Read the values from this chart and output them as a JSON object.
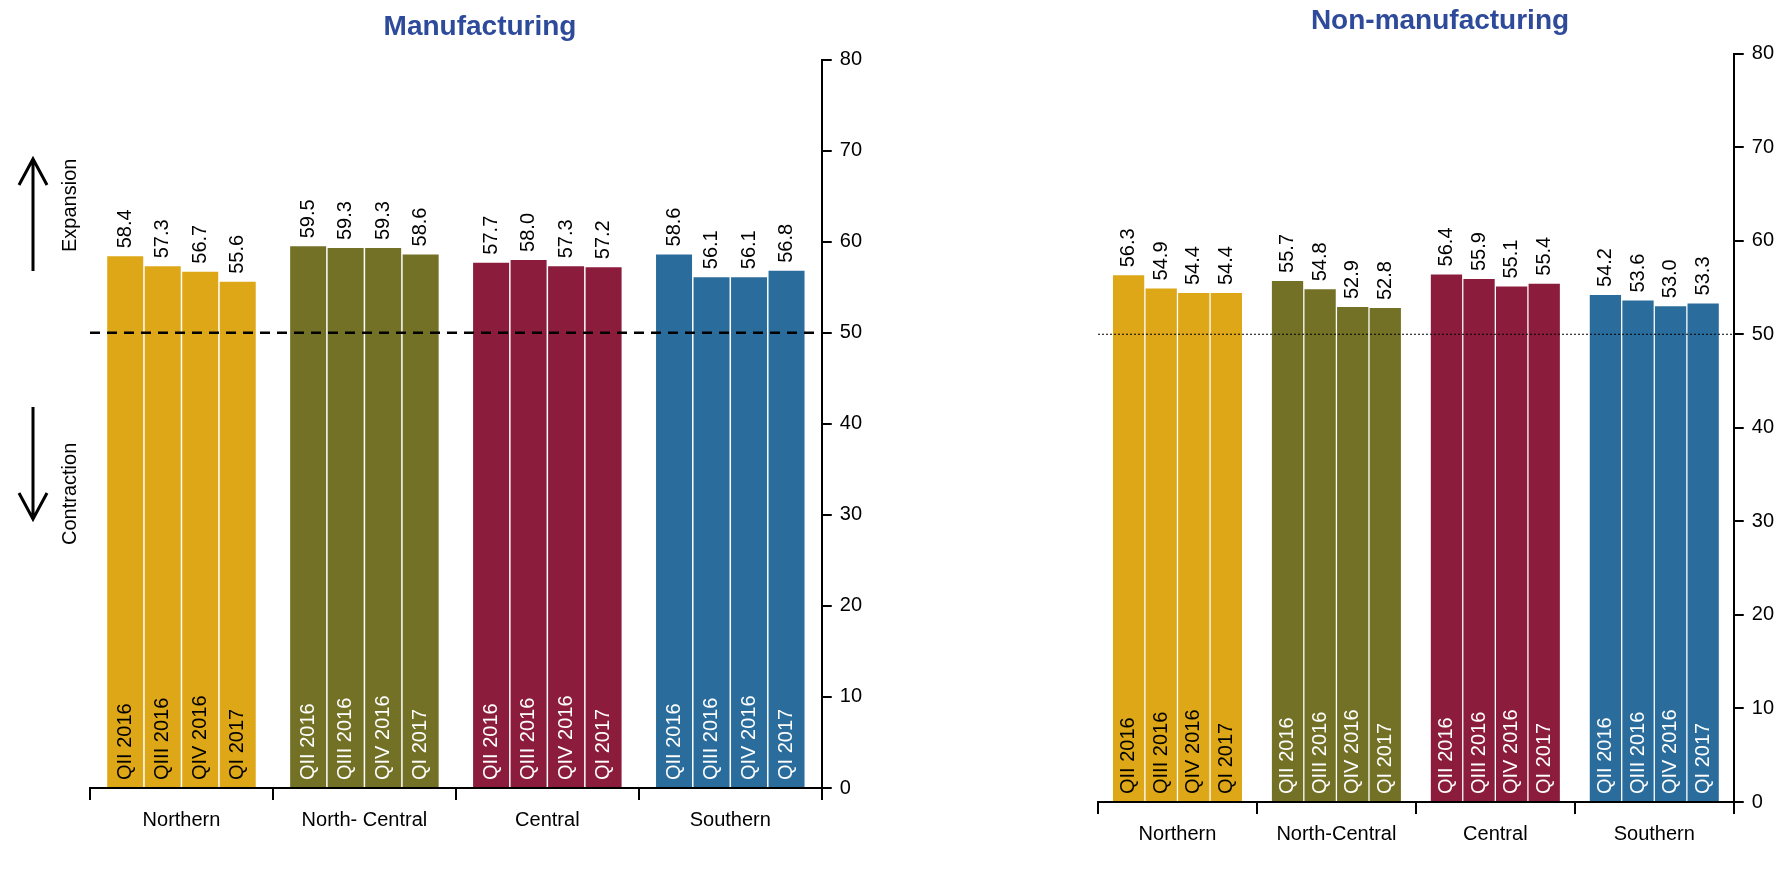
{
  "chart_data": [
    {
      "type": "bar",
      "title": "Manufacturing",
      "categories": [
        "Northern",
        "North- Central",
        "Central",
        "Southern"
      ],
      "series": [
        {
          "name": "QII 2016",
          "colors": [
            "#dea717",
            "#737126",
            "#8b1c3c",
            "#2a6d9c"
          ],
          "values": [
            58.4,
            59.5,
            57.7,
            58.6
          ]
        },
        {
          "name": "QIII 2016",
          "colors": [
            "#dea717",
            "#737126",
            "#8b1c3c",
            "#2a6d9c"
          ],
          "values": [
            57.3,
            59.3,
            58.0,
            56.1
          ],
          "value_labels": [
            "57.3",
            "59.3",
            "58.0",
            "56.1"
          ]
        },
        {
          "name": "QIV 2016",
          "colors": [
            "#dea717",
            "#737126",
            "#8b1c3c",
            "#2a6d9c"
          ],
          "values": [
            56.7,
            59.3,
            57.3,
            56.1
          ]
        },
        {
          "name": "QI 2017",
          "colors": [
            "#dea717",
            "#737126",
            "#8b1c3c",
            "#2a6d9c"
          ],
          "values": [
            55.6,
            58.6,
            57.2,
            56.8
          ]
        }
      ],
      "ylim": [
        0,
        80
      ],
      "yticks": [
        0,
        10,
        20,
        30,
        40,
        50,
        60,
        70,
        80
      ],
      "grid": false,
      "legend": false,
      "data_labels": true,
      "ref_lines": [
        {
          "axis": "y",
          "value": 50,
          "color": "#000000",
          "line_style": "dashed"
        }
      ],
      "annotations": [
        "Expansion",
        "Contraction"
      ]
    },
    {
      "type": "bar",
      "title": "Non-manufacturing",
      "categories": [
        "Northern",
        "North-Central",
        "Central",
        "Southern"
      ],
      "series": [
        {
          "name": "QII 2016",
          "colors": [
            "#dea717",
            "#737126",
            "#8b1c3c",
            "#2a6d9c"
          ],
          "values": [
            56.3,
            55.7,
            56.4,
            54.2
          ]
        },
        {
          "name": "QIII 2016",
          "colors": [
            "#dea717",
            "#737126",
            "#8b1c3c",
            "#2a6d9c"
          ],
          "values": [
            54.9,
            54.8,
            55.9,
            53.6
          ]
        },
        {
          "name": "QIV 2016",
          "colors": [
            "#dea717",
            "#737126",
            "#8b1c3c",
            "#2a6d9c"
          ],
          "values": [
            54.4,
            52.9,
            55.1,
            53.0
          ],
          "value_labels": [
            "54.4",
            "52.9",
            "55.1",
            "53.0"
          ]
        },
        {
          "name": "QI 2017",
          "colors": [
            "#dea717",
            "#737126",
            "#8b1c3c",
            "#2a6d9c"
          ],
          "values": [
            54.4,
            52.8,
            55.4,
            53.3
          ]
        }
      ],
      "ylim": [
        0,
        80
      ],
      "yticks": [
        0,
        10,
        20,
        30,
        40,
        50,
        60,
        70,
        80
      ],
      "grid": false,
      "legend": false,
      "data_labels": true,
      "ref_lines": [
        {
          "axis": "y",
          "value": 50,
          "color": "#000000",
          "line_style": "dotted"
        }
      ]
    }
  ]
}
